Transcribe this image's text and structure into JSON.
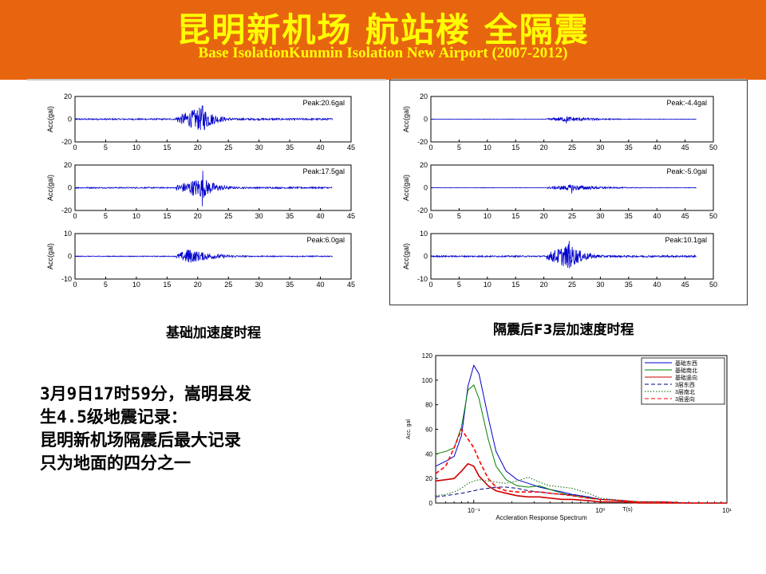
{
  "header": {
    "title": "昆明新机场 航站楼 全隔震",
    "subtitle": "Base IsolationKunmin Isolation New Airport  (2007-2012)"
  },
  "captions": {
    "left": "基础加速度时程",
    "right": "隔震后F3层加速度时程"
  },
  "note_lines": [
    "3月9日17时59分，嵩明县发",
    "生4.5级地震记录：",
    "昆明新机场隔震后最大记录",
    "只为地面的四分之一"
  ],
  "colors": {
    "header_bg": "#e8650f",
    "header_text": "#ffff00",
    "trace": "#0000cc"
  },
  "chart_data": [
    {
      "type": "line",
      "group": "left",
      "ylabel": "Acc(gal)",
      "peak_label": "Peak:20.6gal",
      "yticks": [
        -20,
        0,
        20
      ],
      "ylim": [
        -20,
        20
      ],
      "xticks": [
        0,
        5,
        10,
        15,
        20,
        25,
        30,
        35,
        40,
        45
      ],
      "xlim": [
        0,
        45
      ],
      "record_end": 42,
      "onset": 16.5,
      "peak_time": 20.8,
      "peak": 20.6,
      "decay": 2.0
    },
    {
      "type": "line",
      "group": "left",
      "ylabel": "Acc(gal)",
      "peak_label": "Peak:17.5gal",
      "yticks": [
        -20,
        0,
        20
      ],
      "ylim": [
        -20,
        20
      ],
      "xticks": [
        0,
        5,
        10,
        15,
        20,
        25,
        30,
        35,
        40,
        45
      ],
      "xlim": [
        0,
        45
      ],
      "record_end": 42,
      "onset": 16.5,
      "peak_time": 20.8,
      "peak": 17.5,
      "decay": 2.2
    },
    {
      "type": "line",
      "group": "left",
      "ylabel": "Acc(gal)",
      "peak_label": "Peak:6.0gal",
      "yticks": [
        -10,
        0,
        10
      ],
      "ylim": [
        -10,
        10
      ],
      "xticks": [
        0,
        5,
        10,
        15,
        20,
        25,
        30,
        35,
        40,
        45
      ],
      "xlim": [
        0,
        45
      ],
      "record_end": 42,
      "onset": 16.5,
      "peak_time": 18.5,
      "peak": 6.0,
      "decay": 4.0
    },
    {
      "type": "line",
      "group": "right",
      "ylabel": "Acc(gal)",
      "peak_label": "Peak:-4.4gal",
      "yticks": [
        -20,
        0,
        20
      ],
      "ylim": [
        -20,
        20
      ],
      "xticks": [
        0,
        5,
        10,
        15,
        20,
        25,
        30,
        35,
        40,
        45,
        50
      ],
      "xlim": [
        0,
        50
      ],
      "record_end": 47,
      "onset": 20.5,
      "peak_time": 24.0,
      "peak": 4.4,
      "decay": 5.0
    },
    {
      "type": "line",
      "group": "right",
      "ylabel": "Acc(gal)",
      "peak_label": "Peak:-5.0gal",
      "yticks": [
        -20,
        0,
        20
      ],
      "ylim": [
        -20,
        20
      ],
      "xticks": [
        0,
        5,
        10,
        15,
        20,
        25,
        30,
        35,
        40,
        45,
        50
      ],
      "xlim": [
        0,
        50
      ],
      "record_end": 47,
      "onset": 20.5,
      "peak_time": 25.0,
      "peak": 5.0,
      "decay": 5.0
    },
    {
      "type": "line",
      "group": "right",
      "ylabel": "Acc(gal)",
      "peak_label": "Peak:10.1gal",
      "yticks": [
        -10,
        0,
        10
      ],
      "ylim": [
        -10,
        10
      ],
      "xticks": [
        0,
        5,
        10,
        15,
        20,
        25,
        30,
        35,
        40,
        45,
        50
      ],
      "xlim": [
        0,
        50
      ],
      "record_end": 47,
      "onset": 20.5,
      "peak_time": 24.5,
      "peak": 10.1,
      "decay": 2.5
    },
    {
      "type": "line",
      "group": "spectrum",
      "log_x": true,
      "xlabel": "Accleration Response Spectrum",
      "ylabel": "Acc. gal",
      "ylim": [
        0,
        120
      ],
      "yticks": [
        0,
        20,
        40,
        60,
        80,
        100,
        120
      ],
      "xlim": [
        0.05,
        10
      ],
      "xtick_labels": [
        "10⁻¹",
        "10⁰",
        "10¹"
      ],
      "xtick_values": [
        0.1,
        1,
        10
      ],
      "axis_note": "T(s)",
      "series": [
        {
          "name": "基础东西",
          "color": "#0000cc",
          "dash": "solid",
          "x": [
            0.05,
            0.06,
            0.07,
            0.08,
            0.09,
            0.1,
            0.11,
            0.13,
            0.15,
            0.18,
            0.22,
            0.27,
            0.33,
            0.4,
            0.5,
            0.6,
            0.8,
            1,
            1.5,
            2,
            3,
            5,
            10
          ],
          "y": [
            30,
            34,
            38,
            55,
            95,
            112,
            105,
            70,
            42,
            26,
            19,
            16,
            13,
            11,
            9,
            7,
            5,
            3,
            2,
            1,
            1,
            0,
            0
          ]
        },
        {
          "name": "基础南北",
          "color": "#008000",
          "dash": "solid",
          "x": [
            0.05,
            0.06,
            0.07,
            0.08,
            0.09,
            0.1,
            0.11,
            0.13,
            0.15,
            0.18,
            0.22,
            0.27,
            0.33,
            0.4,
            0.5,
            0.6,
            0.8,
            1,
            1.5,
            2,
            3,
            5,
            10
          ],
          "y": [
            40,
            42,
            45,
            62,
            92,
            96,
            85,
            52,
            30,
            19,
            14,
            13,
            14,
            11,
            8,
            6,
            4,
            3,
            2,
            1,
            1,
            0,
            0
          ]
        },
        {
          "name": "基础竖向",
          "color": "#cc0000",
          "dash": "solid",
          "x": [
            0.05,
            0.06,
            0.07,
            0.08,
            0.09,
            0.1,
            0.11,
            0.13,
            0.15,
            0.18,
            0.22,
            0.27,
            0.33,
            0.4,
            0.5,
            0.6,
            0.8,
            1,
            1.5,
            2,
            3,
            5,
            10
          ],
          "y": [
            18,
            19,
            20,
            26,
            32,
            30,
            22,
            14,
            10,
            8,
            6,
            5,
            5,
            4,
            3,
            3,
            2,
            1,
            1,
            0,
            0,
            0,
            0
          ]
        },
        {
          "name": "3层东西",
          "color": "#000080",
          "dash": "dashed",
          "x": [
            0.05,
            0.06,
            0.07,
            0.08,
            0.09,
            0.1,
            0.11,
            0.13,
            0.15,
            0.18,
            0.22,
            0.27,
            0.33,
            0.4,
            0.5,
            0.6,
            0.8,
            1,
            1.5,
            2,
            3,
            5,
            10
          ],
          "y": [
            5,
            6,
            7,
            8,
            9,
            10,
            11,
            12,
            13,
            13,
            12,
            10,
            9,
            8,
            7,
            7,
            5,
            3,
            2,
            1,
            1,
            0,
            0
          ]
        },
        {
          "name": "3层南北",
          "color": "#006400",
          "dash": "dotted",
          "x": [
            0.05,
            0.06,
            0.07,
            0.08,
            0.09,
            0.1,
            0.11,
            0.13,
            0.15,
            0.18,
            0.22,
            0.27,
            0.33,
            0.4,
            0.5,
            0.6,
            0.8,
            1,
            1.5,
            2,
            3,
            5,
            10
          ],
          "y": [
            6,
            7,
            9,
            12,
            16,
            18,
            19,
            18,
            17,
            16,
            18,
            21,
            17,
            14,
            13,
            12,
            8,
            4,
            2,
            1,
            1,
            0,
            0
          ]
        },
        {
          "name": "3层竖向",
          "color": "#ff0000",
          "dash": "dashed",
          "x": [
            0.05,
            0.06,
            0.07,
            0.08,
            0.09,
            0.1,
            0.11,
            0.13,
            0.15,
            0.18,
            0.22,
            0.27,
            0.33,
            0.4,
            0.5,
            0.6,
            0.8,
            1,
            1.5,
            2,
            3,
            5,
            10
          ],
          "y": [
            24,
            30,
            45,
            60,
            52,
            45,
            35,
            20,
            13,
            10,
            9,
            9,
            9,
            8,
            7,
            6,
            4,
            3,
            2,
            1,
            1,
            0,
            0
          ]
        }
      ]
    }
  ]
}
